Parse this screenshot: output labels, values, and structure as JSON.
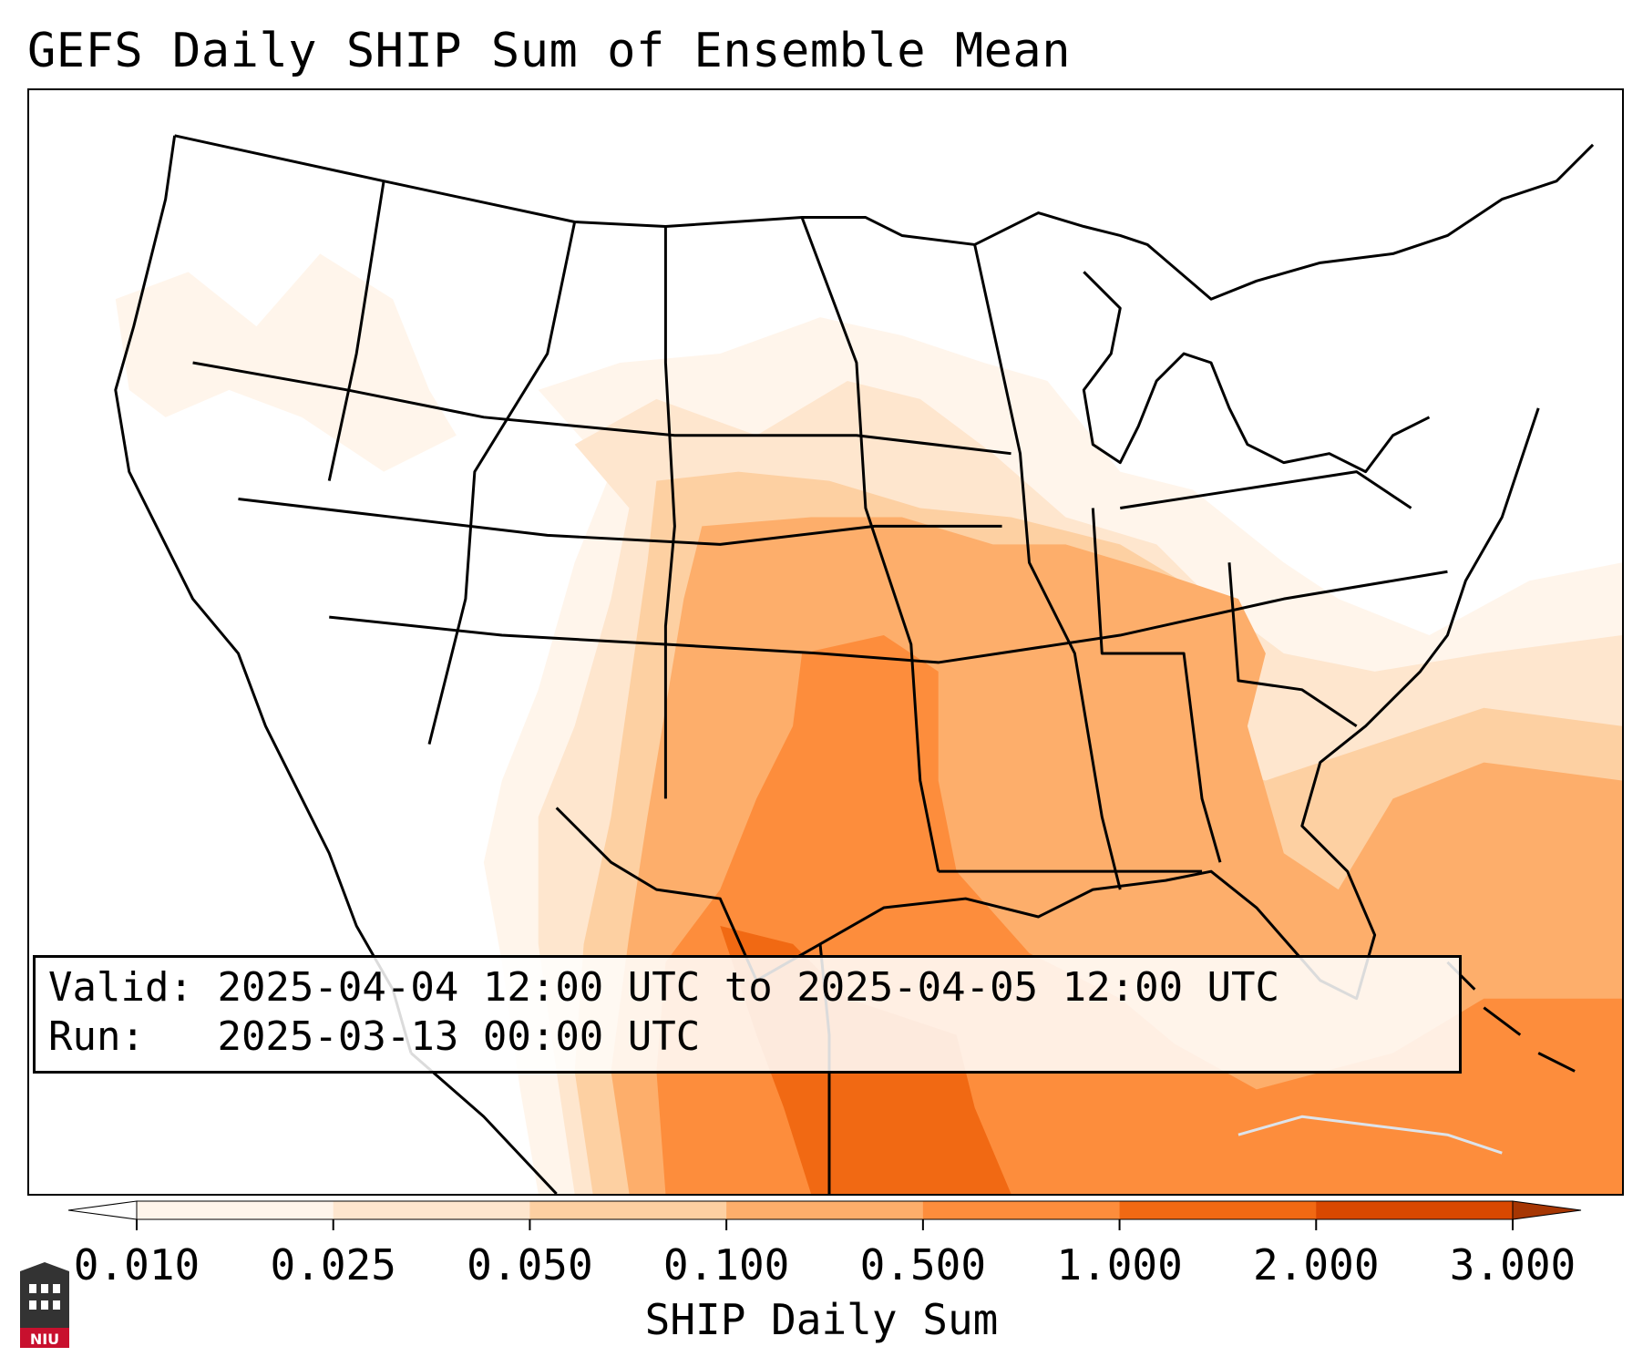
{
  "title": "GEFS Daily SHIP Sum of Ensemble Mean",
  "info": {
    "valid_label": "Valid:",
    "valid_value": "2025-04-04 12:00 UTC to 2025-04-05 12:00 UTC",
    "run_label": "Run:",
    "run_value": "2025-03-13 00:00 UTC"
  },
  "colorbar": {
    "label": "SHIP Daily Sum",
    "ticks": [
      "0.010",
      "0.025",
      "0.050",
      "0.100",
      "0.500",
      "1.000",
      "2.000",
      "3.000"
    ],
    "colors": [
      "#fff5eb",
      "#fee6ce",
      "#fdd0a2",
      "#fdae6b",
      "#fd8d3c",
      "#f16913",
      "#d94801"
    ],
    "under_color": "#ffffff",
    "over_color": "#a63603"
  },
  "logo": {
    "text": "NIU",
    "color": "#c8102e"
  }
}
